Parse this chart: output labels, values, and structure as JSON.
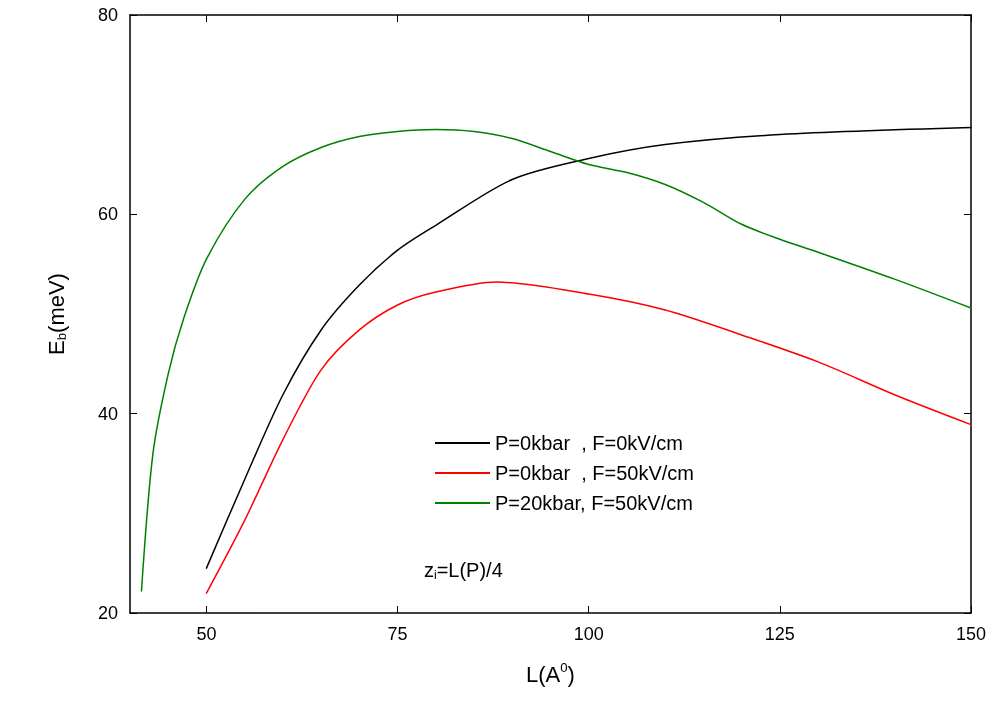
{
  "chart_data": {
    "type": "line",
    "xlabel": "L(A$^{0}$)",
    "ylabel": "E$_{b}$(meV)",
    "xlim": [
      40,
      150
    ],
    "xticks": [
      50,
      75,
      100,
      125,
      150
    ],
    "ylim": [
      20,
      80
    ],
    "yticks": [
      20,
      40,
      60,
      80
    ],
    "grid": false,
    "legend": "bottom",
    "marker": "none",
    "line_style": "solid",
    "annotations": [
      "z$_{i}$=L(P)/4"
    ],
    "series": [
      {
        "name": "P=0kbar  , F=0kV/cm",
        "color": "#000000",
        "x": [
          50,
          55,
          60,
          65,
          70,
          75,
          80,
          90,
          100,
          110,
          125,
          150
        ],
        "values": [
          24.5,
          33.4,
          41.9,
          48.4,
          52.9,
          56.4,
          58.9,
          63.5,
          65.6,
          67.0,
          68.0,
          68.7
        ]
      },
      {
        "name": "P=0kbar  , F=50kV/cm",
        "color": "#ff0000",
        "x": [
          50,
          55,
          60,
          65,
          70,
          75,
          80,
          88,
          100,
          110,
          120,
          130,
          140,
          150
        ],
        "values": [
          22.0,
          29.3,
          37.4,
          44.4,
          48.4,
          50.9,
          52.2,
          53.2,
          52.0,
          50.4,
          47.9,
          45.2,
          41.9,
          38.9
        ]
      },
      {
        "name": "P=20kbar, F=50kV/cm",
        "color": "#008000",
        "x": [
          41.5,
          43,
          45,
          47,
          50,
          55,
          60,
          65,
          70,
          75,
          80,
          85,
          90,
          95,
          100,
          105,
          110,
          115,
          120,
          125,
          130,
          140,
          150
        ],
        "values": [
          22.2,
          36,
          44,
          49.5,
          55.5,
          61.5,
          64.8,
          66.7,
          67.8,
          68.3,
          68.5,
          68.3,
          67.6,
          66.3,
          65.0,
          64.2,
          63.0,
          61.2,
          59.0,
          57.5,
          56.2,
          53.5,
          50.6
        ]
      }
    ]
  }
}
